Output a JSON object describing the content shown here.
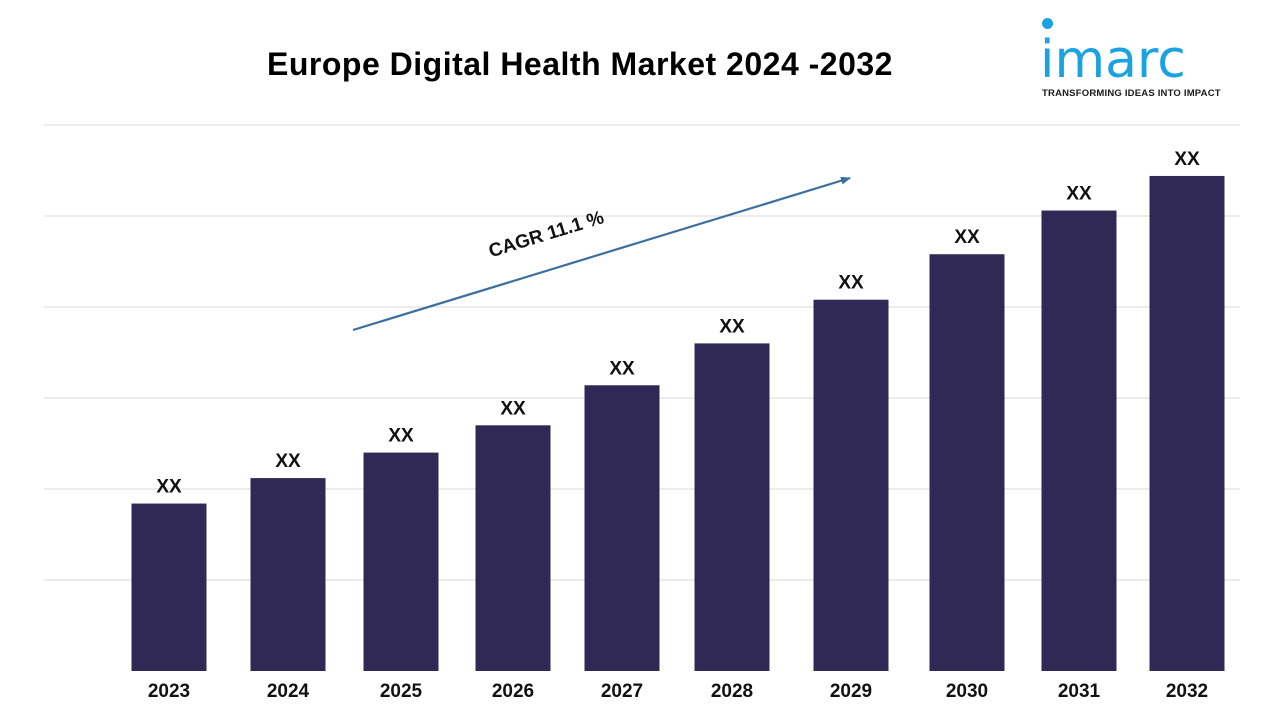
{
  "title": "Europe Digital Health Market 2024 -2032",
  "logo": {
    "word": "imarc",
    "tagline": "TRANSFORMING IDEAS INTO IMPACT",
    "color": "#1aa3e0"
  },
  "cagr_label": "CAGR 11.1 %",
  "colors": {
    "bar": "#302956",
    "grid": "#d9d9d9",
    "arrow": "#3d6f9e"
  },
  "chart_data": {
    "type": "bar",
    "title": "Europe Digital Health Market 2024 -2032",
    "xlabel": "",
    "ylabel": "",
    "categories": [
      "2023",
      "2024",
      "2025",
      "2026",
      "2027",
      "2028",
      "2029",
      "2030",
      "2031",
      "2032"
    ],
    "values": [
      92,
      106,
      120,
      135,
      157,
      180,
      204,
      229,
      253,
      272
    ],
    "data_labels": [
      "XX",
      "XX",
      "XX",
      "XX",
      "XX",
      "XX",
      "XX",
      "XX",
      "XX",
      "XX"
    ],
    "ylim": [
      0,
      300
    ],
    "y_tick_labels_shown": false,
    "grid": true,
    "legend": "none"
  }
}
